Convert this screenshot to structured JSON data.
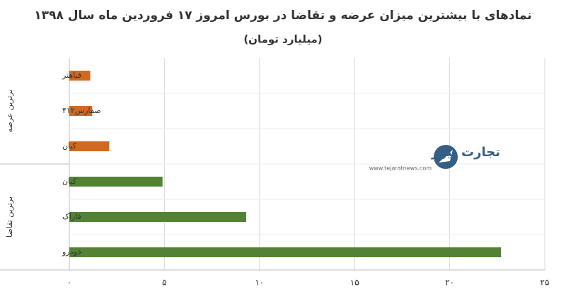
{
  "chart_data": {
    "type": "bar",
    "title": "نمادهای با بیشترین میزان عرضه و تقاضا در بورس امروز ۱۷ فروردین ماه سال ۱۳۹۸",
    "subtitle": "(میلیارد تومان)",
    "groups": [
      {
        "name": "برترین عرضه",
        "color": "#d2691e",
        "categories": [
          "فباهنر",
          "صفارس۴۱۲",
          "کیان"
        ],
        "values": [
          1.1,
          1.2,
          2.1
        ]
      },
      {
        "name": "برترین تقاضا",
        "color": "#548235",
        "categories": [
          "کیان",
          "فاراک",
          "خودرو"
        ],
        "values": [
          4.9,
          9.3,
          22.7
        ]
      }
    ],
    "xlim": [
      0,
      25
    ],
    "xticks": [
      {
        "value": 0,
        "label": "۰"
      },
      {
        "value": 5,
        "label": "۵"
      },
      {
        "value": 10,
        "label": "۱۰"
      },
      {
        "value": 15,
        "label": "۱۵"
      },
      {
        "value": 20,
        "label": "۲۰"
      },
      {
        "value": 25,
        "label": "۲۵"
      }
    ],
    "grid": true,
    "watermark": {
      "brand": "تجارت نیوز",
      "url": "www.tejaratnews.com"
    }
  }
}
